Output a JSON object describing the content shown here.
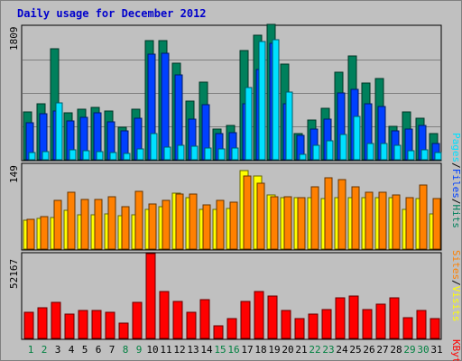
{
  "title": "Daily usage for December 2012",
  "colors": {
    "hits": "#00805c",
    "files": "#0040ff",
    "pages": "#00e0ff",
    "visits": "#ffff00",
    "sites": "#ff8000",
    "kbytes": "#ff0000",
    "weekday_label": "#008040",
    "plot_bg": "#c0c0c0",
    "bg": "#c0c0c0"
  },
  "side_labels": {
    "panel1": [
      "Pages",
      "/",
      "Files",
      "/",
      "Hits"
    ],
    "panel2": [
      "Sites",
      "/",
      "Visits"
    ],
    "panel3": [
      "KBytes"
    ]
  },
  "chart_data": [
    {
      "type": "bar",
      "panel": "hits-files-pages",
      "ymax_label": "1809",
      "ylim": [
        0,
        1809
      ],
      "categories": [
        "1",
        "2",
        "3",
        "4",
        "5",
        "6",
        "7",
        "8",
        "9",
        "10",
        "11",
        "12",
        "13",
        "14",
        "15",
        "16",
        "17",
        "18",
        "19",
        "20",
        "21",
        "22",
        "23",
        "24",
        "25",
        "26",
        "27",
        "28",
        "29",
        "30",
        "31"
      ],
      "weekend_days": [
        "1",
        "2",
        "8",
        "9",
        "15",
        "16",
        "22",
        "23",
        "29",
        "30"
      ],
      "series": [
        {
          "name": "Hits",
          "values": [
            650,
            760,
            1500,
            640,
            680,
            710,
            660,
            440,
            690,
            1610,
            1610,
            1310,
            790,
            1050,
            410,
            460,
            1480,
            1690,
            1830,
            1290,
            360,
            540,
            700,
            1180,
            1410,
            1040,
            1100,
            450,
            650,
            560,
            350
          ]
        },
        {
          "name": "Files",
          "values": [
            500,
            620,
            660,
            520,
            580,
            640,
            510,
            390,
            560,
            1430,
            1440,
            1150,
            550,
            740,
            360,
            370,
            760,
            1220,
            1580,
            760,
            330,
            420,
            550,
            900,
            950,
            760,
            720,
            390,
            410,
            460,
            220
          ]
        },
        {
          "name": "Pages",
          "values": [
            100,
            110,
            770,
            130,
            120,
            110,
            100,
            90,
            150,
            350,
            170,
            200,
            180,
            160,
            150,
            160,
            980,
            1600,
            1620,
            920,
            70,
            190,
            260,
            340,
            590,
            220,
            220,
            200,
            120,
            140,
            100
          ]
        }
      ]
    },
    {
      "type": "bar",
      "panel": "visits-sites",
      "ymax_label": "149",
      "ylim": [
        0,
        149
      ],
      "categories": [
        "1",
        "2",
        "3",
        "4",
        "5",
        "6",
        "7",
        "8",
        "9",
        "10",
        "11",
        "12",
        "13",
        "14",
        "15",
        "16",
        "17",
        "18",
        "19",
        "20",
        "21",
        "22",
        "23",
        "24",
        "25",
        "26",
        "27",
        "28",
        "29",
        "30",
        "31"
      ],
      "series": [
        {
          "name": "Visits",
          "values": [
            50,
            54,
            55,
            68,
            60,
            60,
            62,
            58,
            60,
            69,
            74,
            98,
            90,
            70,
            70,
            71,
            138,
            128,
            95,
            90,
            90,
            90,
            89,
            90,
            91,
            91,
            90,
            90,
            70,
            88,
            62
          ]
        },
        {
          "name": "Sites",
          "values": [
            52,
            57,
            85,
            100,
            87,
            87,
            92,
            75,
            102,
            80,
            85,
            96,
            96,
            78,
            85,
            83,
            128,
            115,
            92,
            92,
            90,
            110,
            125,
            122,
            110,
            100,
            100,
            95,
            90,
            113,
            88
          ]
        }
      ]
    },
    {
      "type": "bar",
      "panel": "kbytes",
      "ymax_label": "52167",
      "ylim": [
        0,
        52167
      ],
      "categories": [
        "1",
        "2",
        "3",
        "4",
        "5",
        "6",
        "7",
        "8",
        "9",
        "10",
        "11",
        "12",
        "13",
        "14",
        "15",
        "16",
        "17",
        "18",
        "19",
        "20",
        "21",
        "22",
        "23",
        "24",
        "25",
        "26",
        "27",
        "28",
        "29",
        "30",
        "31"
      ],
      "series": [
        {
          "name": "KBytes",
          "values": [
            16000,
            19000,
            22000,
            15000,
            17000,
            17000,
            16000,
            9500,
            22000,
            52000,
            29000,
            23000,
            16000,
            24000,
            7500,
            12000,
            23000,
            29000,
            26000,
            17000,
            12000,
            15000,
            18000,
            25000,
            26000,
            18000,
            21000,
            25000,
            13000,
            17000,
            12000
          ]
        }
      ]
    }
  ]
}
